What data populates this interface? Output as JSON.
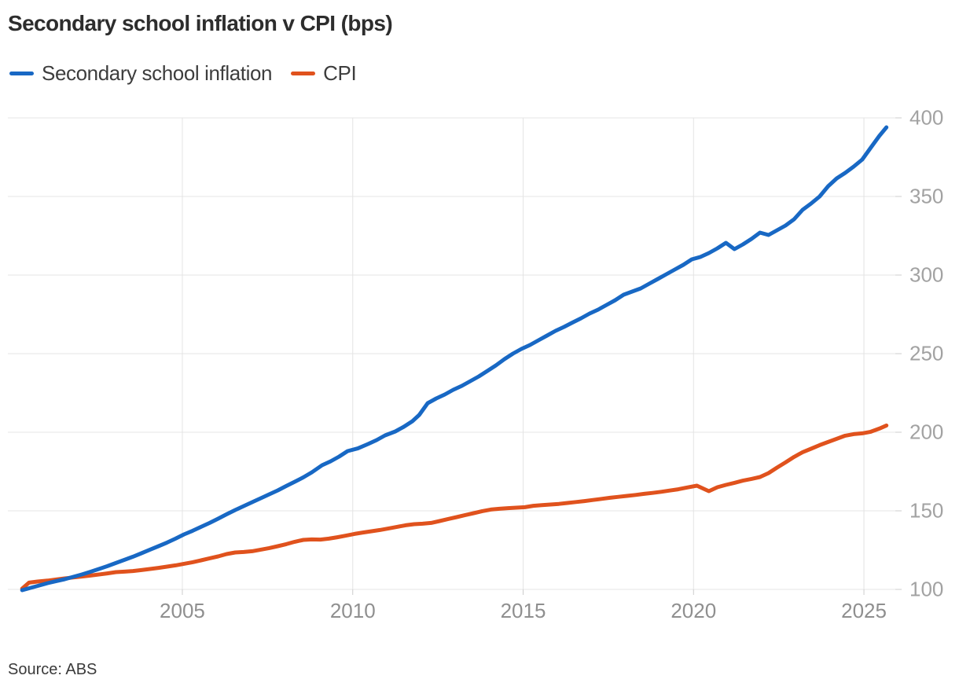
{
  "title": "Secondary school inflation v CPI (bps)",
  "source": "Source: ABS",
  "legend": {
    "items": [
      {
        "label": "Secondary school inflation",
        "color": "#1868c4"
      },
      {
        "label": "CPI",
        "color": "#e0521d"
      }
    ]
  },
  "colors": {
    "series_blue": "#1868c4",
    "series_orange": "#e0521d",
    "gridline": "#e4e4e4",
    "tick": "#cccccc",
    "x_label": "#8f8f8f",
    "y_label": "#a2a2a2",
    "title_text": "#2d2d2d",
    "background": "#ffffff"
  },
  "chart_data": {
    "type": "line",
    "title": "Secondary school inflation v CPI (bps)",
    "xlabel": "",
    "ylabel": "",
    "x_range": [
      1999.88,
      2026.06
    ],
    "y_range": [
      100,
      400
    ],
    "x_ticks": [
      2005,
      2010,
      2015,
      2020,
      2025
    ],
    "y_ticks": [
      100,
      150,
      200,
      250,
      300,
      350,
      400
    ],
    "grid": true,
    "legend_position": "top",
    "series": [
      {
        "name": "Secondary school inflation",
        "color": "#1868c4",
        "points": [
          [
            2000.3,
            99.5
          ],
          [
            2000.55,
            101
          ],
          [
            2000.8,
            102.5
          ],
          [
            2001.05,
            104
          ],
          [
            2001.3,
            105.3
          ],
          [
            2001.55,
            106.5
          ],
          [
            2001.8,
            108
          ],
          [
            2002.05,
            109.5
          ],
          [
            2002.3,
            111.2
          ],
          [
            2002.55,
            113
          ],
          [
            2002.8,
            114.8
          ],
          [
            2003.05,
            116.8
          ],
          [
            2003.3,
            118.8
          ],
          [
            2003.55,
            120.8
          ],
          [
            2003.8,
            123
          ],
          [
            2004.05,
            125.3
          ],
          [
            2004.3,
            127.5
          ],
          [
            2004.55,
            129.8
          ],
          [
            2004.8,
            132.3
          ],
          [
            2005.05,
            135
          ],
          [
            2005.3,
            137.3
          ],
          [
            2005.55,
            139.8
          ],
          [
            2005.8,
            142.3
          ],
          [
            2006.05,
            145
          ],
          [
            2006.3,
            147.8
          ],
          [
            2006.55,
            150.5
          ],
          [
            2006.8,
            153
          ],
          [
            2007.05,
            155.5
          ],
          [
            2007.3,
            158
          ],
          [
            2007.55,
            160.5
          ],
          [
            2007.8,
            163
          ],
          [
            2008.05,
            165.8
          ],
          [
            2008.3,
            168.5
          ],
          [
            2008.55,
            171.3
          ],
          [
            2008.8,
            174.5
          ],
          [
            2009.1,
            179
          ],
          [
            2009.35,
            181.5
          ],
          [
            2009.6,
            184.5
          ],
          [
            2009.85,
            188
          ],
          [
            2010.15,
            189.7
          ],
          [
            2010.45,
            192.5
          ],
          [
            2010.7,
            195
          ],
          [
            2010.95,
            198
          ],
          [
            2011.25,
            200.5
          ],
          [
            2011.5,
            203.5
          ],
          [
            2011.75,
            207
          ],
          [
            2011.95,
            211
          ],
          [
            2012.2,
            218.5
          ],
          [
            2012.45,
            221.5
          ],
          [
            2012.7,
            224
          ],
          [
            2012.95,
            227
          ],
          [
            2013.2,
            229.5
          ],
          [
            2013.45,
            232.5
          ],
          [
            2013.7,
            235.5
          ],
          [
            2013.95,
            239
          ],
          [
            2014.2,
            242.5
          ],
          [
            2014.45,
            246.5
          ],
          [
            2014.7,
            250
          ],
          [
            2014.95,
            253
          ],
          [
            2015.2,
            255.5
          ],
          [
            2015.45,
            258.5
          ],
          [
            2015.7,
            261.5
          ],
          [
            2015.95,
            264.5
          ],
          [
            2016.2,
            267
          ],
          [
            2016.45,
            269.8
          ],
          [
            2016.7,
            272.5
          ],
          [
            2016.95,
            275.5
          ],
          [
            2017.2,
            278
          ],
          [
            2017.45,
            281
          ],
          [
            2017.7,
            284
          ],
          [
            2017.95,
            287.5
          ],
          [
            2018.2,
            289.5
          ],
          [
            2018.45,
            291.5
          ],
          [
            2018.7,
            294.5
          ],
          [
            2018.95,
            297.5
          ],
          [
            2019.2,
            300.5
          ],
          [
            2019.45,
            303.5
          ],
          [
            2019.7,
            306.5
          ],
          [
            2019.95,
            310
          ],
          [
            2020.2,
            311.5
          ],
          [
            2020.45,
            314
          ],
          [
            2020.7,
            317
          ],
          [
            2020.95,
            320.5
          ],
          [
            2021.2,
            316.5
          ],
          [
            2021.45,
            319.5
          ],
          [
            2021.7,
            323
          ],
          [
            2021.95,
            327
          ],
          [
            2022.2,
            325.5
          ],
          [
            2022.45,
            328.5
          ],
          [
            2022.7,
            331.5
          ],
          [
            2022.95,
            335.5
          ],
          [
            2023.2,
            341.5
          ],
          [
            2023.45,
            345.5
          ],
          [
            2023.7,
            350
          ],
          [
            2023.95,
            356.5
          ],
          [
            2024.2,
            361.5
          ],
          [
            2024.45,
            365
          ],
          [
            2024.7,
            369
          ],
          [
            2024.95,
            373.5
          ],
          [
            2025.2,
            381
          ],
          [
            2025.45,
            388.5
          ],
          [
            2025.66,
            394
          ]
        ]
      },
      {
        "name": "CPI",
        "color": "#e0521d",
        "points": [
          [
            2000.3,
            100.5
          ],
          [
            2000.5,
            104.3
          ],
          [
            2000.75,
            105
          ],
          [
            2001.05,
            105.6
          ],
          [
            2001.3,
            106.3
          ],
          [
            2001.55,
            107
          ],
          [
            2001.8,
            107.6
          ],
          [
            2002.05,
            108.2
          ],
          [
            2002.3,
            108.8
          ],
          [
            2002.55,
            109.5
          ],
          [
            2002.8,
            110.2
          ],
          [
            2003.05,
            111
          ],
          [
            2003.3,
            111.3
          ],
          [
            2003.55,
            111.7
          ],
          [
            2003.8,
            112.3
          ],
          [
            2004.05,
            113
          ],
          [
            2004.3,
            113.7
          ],
          [
            2004.55,
            114.5
          ],
          [
            2004.8,
            115.3
          ],
          [
            2005.05,
            116.3
          ],
          [
            2005.3,
            117.3
          ],
          [
            2005.55,
            118.5
          ],
          [
            2005.8,
            119.8
          ],
          [
            2006.05,
            121
          ],
          [
            2006.3,
            122.5
          ],
          [
            2006.55,
            123.5
          ],
          [
            2006.8,
            123.8
          ],
          [
            2007.05,
            124.3
          ],
          [
            2007.3,
            125.3
          ],
          [
            2007.55,
            126.3
          ],
          [
            2007.8,
            127.5
          ],
          [
            2008.05,
            128.8
          ],
          [
            2008.3,
            130.3
          ],
          [
            2008.55,
            131.5
          ],
          [
            2008.8,
            131.8
          ],
          [
            2009.05,
            131.7
          ],
          [
            2009.3,
            132.3
          ],
          [
            2009.55,
            133.2
          ],
          [
            2009.8,
            134.2
          ],
          [
            2010.05,
            135.3
          ],
          [
            2010.3,
            136.2
          ],
          [
            2010.55,
            137
          ],
          [
            2010.8,
            137.8
          ],
          [
            2011.05,
            138.8
          ],
          [
            2011.3,
            139.8
          ],
          [
            2011.55,
            140.8
          ],
          [
            2011.8,
            141.5
          ],
          [
            2012.05,
            141.8
          ],
          [
            2012.3,
            142.3
          ],
          [
            2012.55,
            143.5
          ],
          [
            2012.8,
            144.8
          ],
          [
            2013.05,
            146
          ],
          [
            2013.3,
            147.3
          ],
          [
            2013.55,
            148.5
          ],
          [
            2013.8,
            149.8
          ],
          [
            2014.05,
            150.8
          ],
          [
            2014.3,
            151.3
          ],
          [
            2014.55,
            151.7
          ],
          [
            2014.8,
            152
          ],
          [
            2015.05,
            152.3
          ],
          [
            2015.3,
            153.2
          ],
          [
            2015.55,
            153.6
          ],
          [
            2015.8,
            154
          ],
          [
            2016.05,
            154.4
          ],
          [
            2016.3,
            155
          ],
          [
            2016.55,
            155.6
          ],
          [
            2016.8,
            156.2
          ],
          [
            2017.05,
            156.9
          ],
          [
            2017.3,
            157.6
          ],
          [
            2017.55,
            158.3
          ],
          [
            2017.8,
            158.9
          ],
          [
            2018.05,
            159.5
          ],
          [
            2018.3,
            160.1
          ],
          [
            2018.55,
            160.8
          ],
          [
            2018.8,
            161.4
          ],
          [
            2019.05,
            162.1
          ],
          [
            2019.3,
            162.9
          ],
          [
            2019.55,
            163.7
          ],
          [
            2019.8,
            164.8
          ],
          [
            2020.1,
            166
          ],
          [
            2020.45,
            162.5
          ],
          [
            2020.7,
            165
          ],
          [
            2020.95,
            166.5
          ],
          [
            2021.2,
            167.8
          ],
          [
            2021.45,
            169.2
          ],
          [
            2021.7,
            170.3
          ],
          [
            2021.95,
            171.5
          ],
          [
            2022.2,
            174
          ],
          [
            2022.45,
            177.5
          ],
          [
            2022.7,
            180.8
          ],
          [
            2022.95,
            184.3
          ],
          [
            2023.2,
            187.3
          ],
          [
            2023.45,
            189.5
          ],
          [
            2023.7,
            191.8
          ],
          [
            2023.95,
            193.8
          ],
          [
            2024.2,
            195.8
          ],
          [
            2024.45,
            197.8
          ],
          [
            2024.7,
            198.8
          ],
          [
            2024.95,
            199.3
          ],
          [
            2025.2,
            200.3
          ],
          [
            2025.45,
            202.3
          ],
          [
            2025.66,
            204.3
          ]
        ]
      }
    ]
  }
}
